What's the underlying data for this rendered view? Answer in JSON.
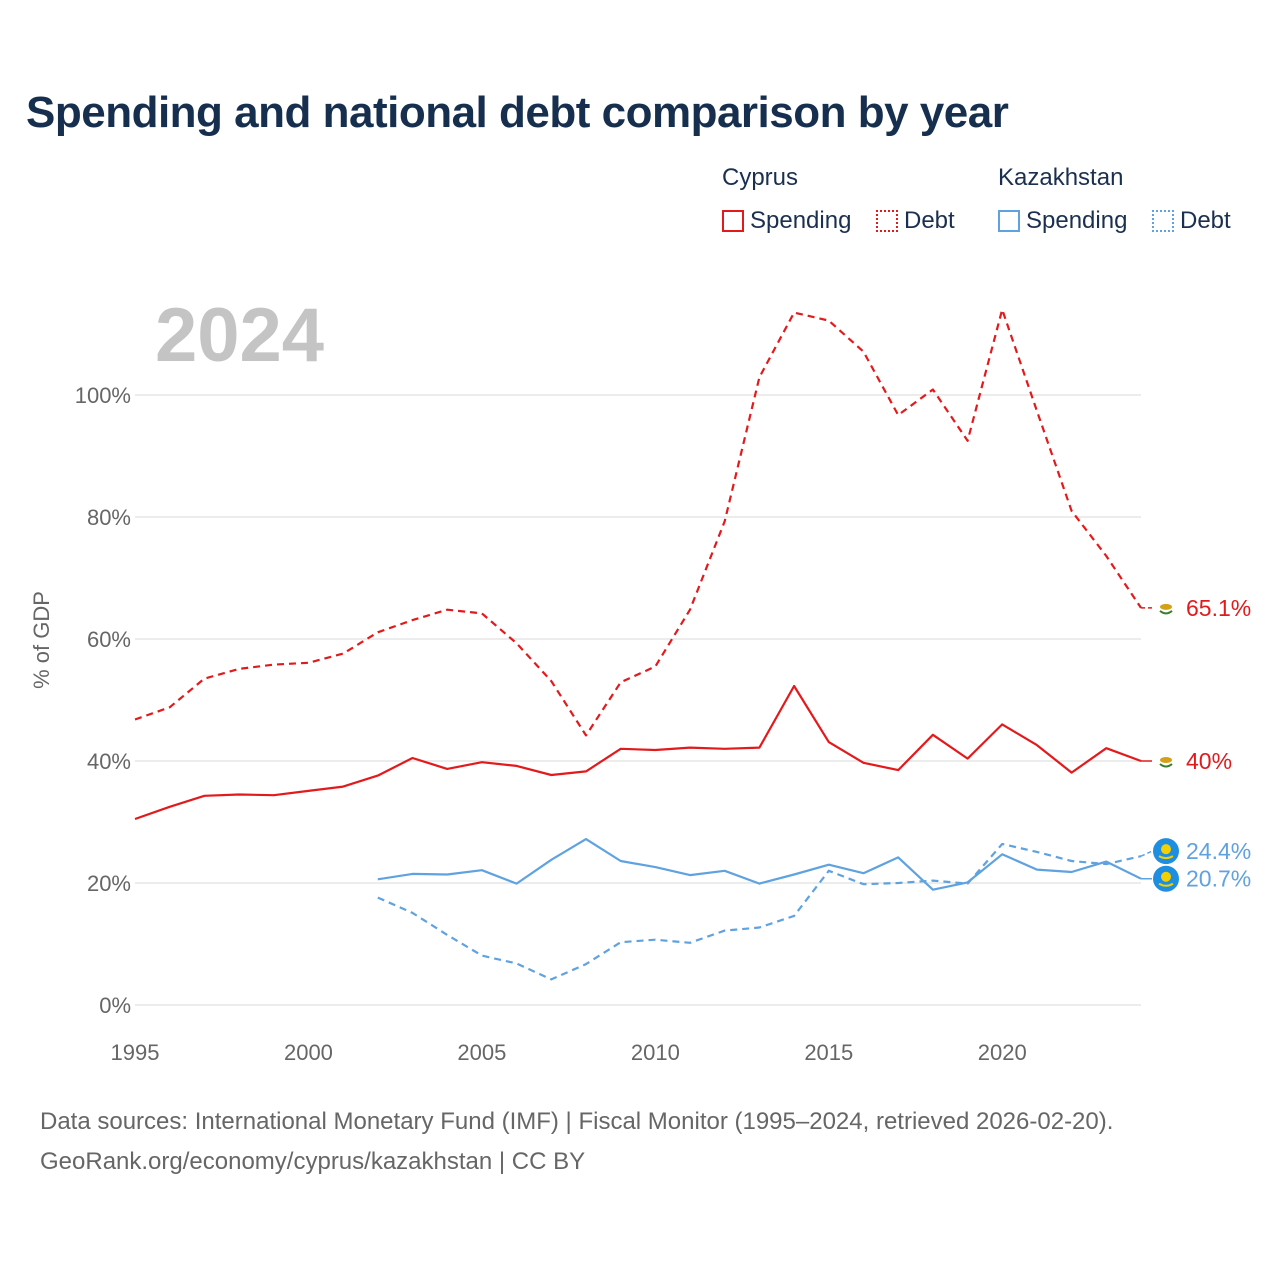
{
  "title": "Spending and national debt comparison by year",
  "year_watermark": "2024",
  "legend": {
    "cyprus": {
      "name": "Cyprus",
      "spending": "Spending",
      "debt": "Debt",
      "color": "#e31a1c"
    },
    "kazakhstan": {
      "name": "Kazakhstan",
      "spending": "Spending",
      "debt": "Debt",
      "color": "#5fa2e0"
    }
  },
  "footer": {
    "line1": "Data sources: International Monetary Fund (IMF) | Fiscal Monitor (1995–2024, retrieved 2026-02-20).",
    "line2": "GeoRank.org/economy/cyprus/kazakhstan | CC BY"
  },
  "chart_data": {
    "type": "line",
    "ylabel": "% of GDP",
    "xlabel": "",
    "xlim": [
      1995,
      2024
    ],
    "ylim": [
      0,
      115
    ],
    "x_ticks": [
      1995,
      2000,
      2005,
      2010,
      2015,
      2020
    ],
    "y_ticks": [
      0,
      20,
      40,
      60,
      80,
      100
    ],
    "y_tick_labels": [
      "0%",
      "20%",
      "40%",
      "60%",
      "80%",
      "100%"
    ],
    "series": [
      {
        "name": "Cyprus Spending",
        "style": "solid",
        "color": "#e31a1c",
        "end_label": "40%",
        "x": [
          1995,
          1996,
          1997,
          1998,
          1999,
          2000,
          2001,
          2002,
          2003,
          2004,
          2005,
          2006,
          2007,
          2008,
          2009,
          2010,
          2011,
          2012,
          2013,
          2014,
          2015,
          2016,
          2017,
          2018,
          2019,
          2020,
          2021,
          2022,
          2023,
          2024
        ],
        "values": [
          30.5,
          32.5,
          34.3,
          34.5,
          34.4,
          35.1,
          35.8,
          37.6,
          40.5,
          38.7,
          39.8,
          39.2,
          37.7,
          38.3,
          42.0,
          41.8,
          42.2,
          42.0,
          42.2,
          52.3,
          43.1,
          39.7,
          38.5,
          44.3,
          40.4,
          46.0,
          42.6,
          38.1,
          42.1,
          40.0
        ]
      },
      {
        "name": "Cyprus Debt",
        "style": "dashed",
        "color": "#e31a1c",
        "end_label": "65.1%",
        "x": [
          1995,
          1996,
          1997,
          1998,
          1999,
          2000,
          2001,
          2002,
          2003,
          2004,
          2005,
          2006,
          2007,
          2008,
          2009,
          2010,
          2011,
          2012,
          2013,
          2014,
          2015,
          2016,
          2017,
          2018,
          2019,
          2020,
          2021,
          2022,
          2023,
          2024
        ],
        "values": [
          46.8,
          48.8,
          53.5,
          55.1,
          55.8,
          56.1,
          57.6,
          61.1,
          63.1,
          64.8,
          64.2,
          59.3,
          53.1,
          44.2,
          52.9,
          55.5,
          64.8,
          79.3,
          102.9,
          113.5,
          112.2,
          107.1,
          96.7,
          100.9,
          92.5,
          114.0,
          97.4,
          81.0,
          73.6,
          65.1
        ]
      },
      {
        "name": "Kazakhstan Spending",
        "style": "solid",
        "color": "#5fa2e0",
        "end_label": "20.7%",
        "x": [
          2002,
          2003,
          2004,
          2005,
          2006,
          2007,
          2008,
          2009,
          2010,
          2011,
          2012,
          2013,
          2014,
          2015,
          2016,
          2017,
          2018,
          2019,
          2020,
          2021,
          2022,
          2023,
          2024
        ],
        "values": [
          20.6,
          21.5,
          21.4,
          22.1,
          19.9,
          23.8,
          27.2,
          23.6,
          22.6,
          21.3,
          22.0,
          19.9,
          21.4,
          23.0,
          21.6,
          24.2,
          18.9,
          20.1,
          24.7,
          22.2,
          21.8,
          23.5,
          20.7
        ]
      },
      {
        "name": "Kazakhstan Debt",
        "style": "dashed",
        "color": "#5fa2e0",
        "end_label": "24.4%",
        "x": [
          2002,
          2003,
          2004,
          2005,
          2006,
          2007,
          2008,
          2009,
          2010,
          2011,
          2012,
          2013,
          2014,
          2015,
          2016,
          2017,
          2018,
          2019,
          2020,
          2021,
          2022,
          2023,
          2024
        ],
        "values": [
          17.6,
          15.1,
          11.5,
          8.1,
          6.8,
          4.2,
          6.7,
          10.3,
          10.7,
          10.2,
          12.2,
          12.7,
          14.6,
          22.0,
          19.8,
          20.0,
          20.4,
          19.9,
          26.4,
          25.1,
          23.6,
          23.1,
          24.4
        ]
      }
    ]
  }
}
